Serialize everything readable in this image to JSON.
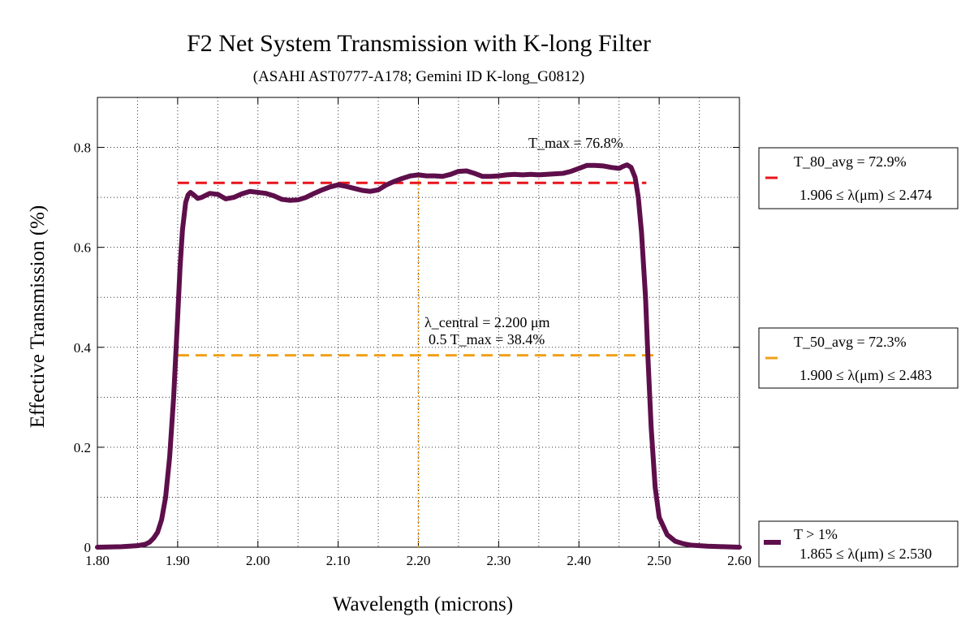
{
  "chart_data": {
    "type": "line",
    "title": "F2 Net System Transmission with K-long Filter",
    "subtitle": "(ASAHI AST0777-A178; Gemini ID K-long_G0812)",
    "xlabel": "Wavelength (microns)",
    "ylabel": "Effective Transmission (%)",
    "xlim": [
      1.8,
      2.6
    ],
    "ylim": [
      0,
      0.9
    ],
    "x_ticks": [
      1.8,
      1.9,
      2.0,
      2.1,
      2.2,
      2.3,
      2.4,
      2.5,
      2.6
    ],
    "x_tick_labels": [
      "1.80",
      "1.90",
      "2.00",
      "2.10",
      "2.20",
      "2.30",
      "2.40",
      "2.50",
      "2.60"
    ],
    "y_ticks": [
      0,
      0.2,
      0.4,
      0.6,
      0.8
    ],
    "y_tick_labels": [
      "0",
      "0.2",
      "0.4",
      "0.6",
      "0.8"
    ],
    "grid": true,
    "colors": {
      "curve": "#5e0f4b",
      "t80_line": "#e8141b",
      "t50_line": "#f0a019",
      "central_line": "#f0a019"
    },
    "series": [
      {
        "x": [
          1.8,
          1.83,
          1.85,
          1.86,
          1.865,
          1.87,
          1.875,
          1.88,
          1.885,
          1.89,
          1.895,
          1.9,
          1.903,
          1.906,
          1.91,
          1.913,
          1.916,
          1.92,
          1.925,
          1.93,
          1.94,
          1.95,
          1.96,
          1.97,
          1.98,
          1.99,
          2.0,
          2.01,
          2.02,
          2.03,
          2.04,
          2.05,
          2.06,
          2.07,
          2.08,
          2.09,
          2.1,
          2.11,
          2.12,
          2.13,
          2.14,
          2.15,
          2.16,
          2.17,
          2.18,
          2.19,
          2.2,
          2.21,
          2.22,
          2.23,
          2.24,
          2.25,
          2.26,
          2.27,
          2.28,
          2.29,
          2.3,
          2.31,
          2.32,
          2.33,
          2.34,
          2.35,
          2.36,
          2.37,
          2.38,
          2.39,
          2.4,
          2.41,
          2.42,
          2.43,
          2.44,
          2.45,
          2.455,
          2.46,
          2.465,
          2.47,
          2.474,
          2.478,
          2.483,
          2.486,
          2.49,
          2.495,
          2.5,
          2.51,
          2.52,
          2.53,
          2.54,
          2.56,
          2.58,
          2.6
        ],
        "values": [
          0.0,
          0.001,
          0.003,
          0.006,
          0.01,
          0.018,
          0.03,
          0.055,
          0.1,
          0.18,
          0.3,
          0.46,
          0.56,
          0.635,
          0.69,
          0.705,
          0.71,
          0.705,
          0.698,
          0.7,
          0.708,
          0.706,
          0.697,
          0.7,
          0.707,
          0.712,
          0.71,
          0.708,
          0.703,
          0.696,
          0.694,
          0.695,
          0.7,
          0.708,
          0.715,
          0.721,
          0.725,
          0.722,
          0.718,
          0.714,
          0.712,
          0.715,
          0.725,
          0.732,
          0.738,
          0.743,
          0.745,
          0.743,
          0.743,
          0.742,
          0.746,
          0.752,
          0.753,
          0.748,
          0.742,
          0.742,
          0.743,
          0.745,
          0.746,
          0.745,
          0.746,
          0.745,
          0.746,
          0.747,
          0.748,
          0.752,
          0.758,
          0.764,
          0.764,
          0.763,
          0.76,
          0.758,
          0.762,
          0.765,
          0.76,
          0.74,
          0.7,
          0.63,
          0.5,
          0.38,
          0.24,
          0.12,
          0.06,
          0.025,
          0.012,
          0.007,
          0.004,
          0.002,
          0.001,
          0.0
        ]
      }
    ],
    "hlines": [
      {
        "y": 0.729,
        "x_from": 1.906,
        "x_to": 2.474,
        "style": "dashed",
        "color_key": "t80_line"
      },
      {
        "y": 0.384,
        "x_from": 1.9,
        "x_to": 2.483,
        "style": "dashed",
        "color_key": "t50_line"
      }
    ],
    "vlines": [
      {
        "x": 2.2,
        "y_from": 0,
        "y_to": 0.745,
        "style": "dotted",
        "color_key": "central_line"
      }
    ],
    "annotations": {
      "t_max": "T_max = 76.8%",
      "lambda_central": "λ_central = 2.200 μm",
      "half_t_max": "0.5 T_max = 38.4%"
    },
    "legend": {
      "placement": "right",
      "t80": {
        "line1": "T_80_avg = 72.9%",
        "line2": "1.906 ≤ λ(μm) ≤ 2.474"
      },
      "t50": {
        "line1": "T_50_avg = 72.3%",
        "line2": "1.900 ≤ λ(μm) ≤ 2.483"
      },
      "t1": {
        "line1": "T > 1%",
        "line2": "1.865 ≤ λ(μm) ≤ 2.530"
      }
    }
  }
}
